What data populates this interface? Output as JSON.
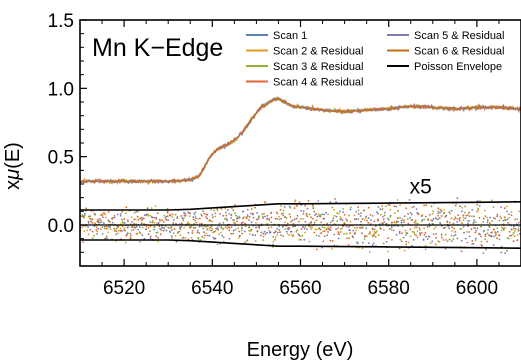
{
  "chart_data": {
    "type": "line",
    "title": "Mn K−Edge",
    "xlabel": "Energy (eV)",
    "ylabel_prefix": "x",
    "ylabel_mu": "μ",
    "ylabel_suffix": "(E)",
    "xlim": [
      6510,
      6610
    ],
    "ylim": [
      -0.3,
      1.5
    ],
    "xticks": [
      "6520",
      "6540",
      "6560",
      "6580",
      "6600"
    ],
    "xtick_values": [
      6520,
      6540,
      6560,
      6580,
      6600
    ],
    "yticks": [
      "0.0",
      "0.5",
      "1.0",
      "1.5"
    ],
    "ytick_values": [
      0.0,
      0.5,
      1.0,
      1.5
    ],
    "residual_offset": 0.0,
    "annotation": {
      "text": "x5",
      "x": 6587,
      "y": 0.23
    },
    "legend_position": "top-right",
    "series": [
      {
        "name": "Scan 1",
        "color": "#5e81b5"
      },
      {
        "name": "Scan 2 & Residual",
        "color": "#e19c24"
      },
      {
        "name": "Scan 3 & Residual",
        "color": "#8fb032"
      },
      {
        "name": "Scan 4 & Residual",
        "color": "#eb6235"
      },
      {
        "name": "Scan 5 & Residual",
        "color": "#8778b3"
      },
      {
        "name": "Scan 6 & Residual",
        "color": "#c56e1a"
      },
      {
        "name": "Poisson Envelope",
        "color": "#000000"
      }
    ],
    "spectrum": {
      "x": [
        6510,
        6515,
        6520,
        6525,
        6530,
        6535,
        6537,
        6538,
        6539,
        6540,
        6541,
        6542,
        6543,
        6544,
        6545,
        6546,
        6547,
        6548,
        6549,
        6550,
        6551,
        6552,
        6553,
        6554,
        6555,
        6556,
        6557,
        6558,
        6560,
        6565,
        6570,
        6575,
        6580,
        6585,
        6590,
        6595,
        6600,
        6605,
        6610
      ],
      "y": [
        0.32,
        0.32,
        0.32,
        0.32,
        0.32,
        0.33,
        0.36,
        0.41,
        0.47,
        0.52,
        0.55,
        0.57,
        0.58,
        0.6,
        0.62,
        0.65,
        0.69,
        0.73,
        0.78,
        0.82,
        0.86,
        0.88,
        0.9,
        0.92,
        0.92,
        0.91,
        0.89,
        0.87,
        0.86,
        0.84,
        0.83,
        0.84,
        0.85,
        0.87,
        0.86,
        0.85,
        0.86,
        0.86,
        0.85
      ]
    },
    "poisson_envelope": {
      "x": [
        6510,
        6520,
        6530,
        6535,
        6540,
        6545,
        6550,
        6555,
        6560,
        6570,
        6580,
        6590,
        6600,
        6610
      ],
      "upper": [
        0.11,
        0.11,
        0.11,
        0.115,
        0.125,
        0.135,
        0.145,
        0.155,
        0.155,
        0.158,
        0.16,
        0.163,
        0.166,
        0.17
      ],
      "lower": [
        -0.11,
        -0.11,
        -0.11,
        -0.115,
        -0.125,
        -0.135,
        -0.145,
        -0.155,
        -0.155,
        -0.158,
        -0.16,
        -0.163,
        -0.166,
        -0.17
      ]
    }
  }
}
